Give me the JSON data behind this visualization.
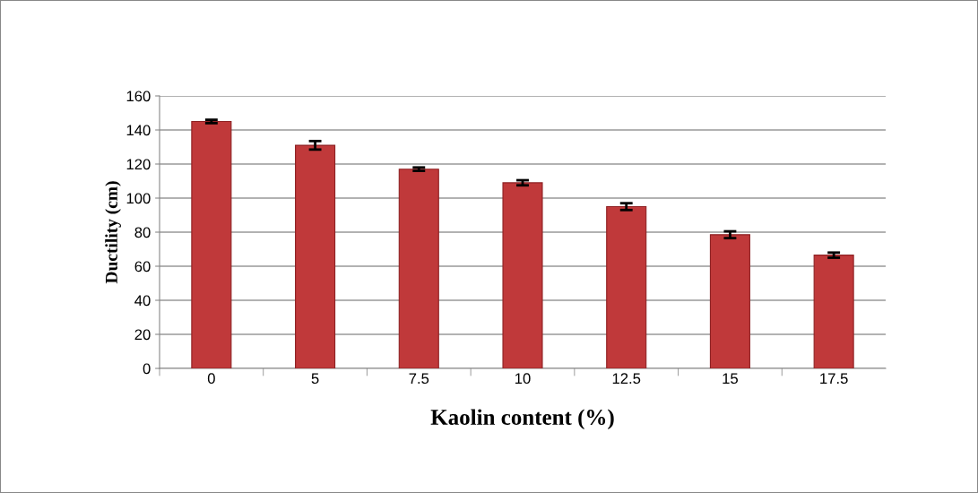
{
  "chart_data": {
    "type": "bar",
    "xlabel": "Kaolin content (%)",
    "ylabel": "Ductility (cm)",
    "categories": [
      "0",
      "5",
      "7.5",
      "10",
      "12.5",
      "15",
      "17.5"
    ],
    "values": [
      145,
      131,
      117,
      109,
      95,
      78.5,
      66.5
    ],
    "errors": [
      1,
      2.5,
      1,
      1.5,
      2,
      2,
      1.5
    ],
    "color": "#c0393a",
    "ylim": [
      0,
      160
    ],
    "yticks": [
      0,
      20,
      40,
      60,
      80,
      100,
      120,
      140,
      160
    ],
    "grid": "y"
  }
}
